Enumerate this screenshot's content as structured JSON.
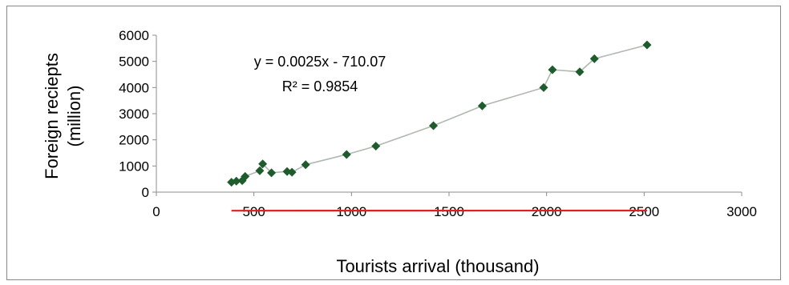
{
  "chart_data": {
    "type": "scatter",
    "title": "",
    "xlabel": "Tourists arrival (thousand)",
    "ylabel_lines": [
      "Foreign reciepts",
      "(million)"
    ],
    "xlim": [
      0,
      3000
    ],
    "ylim": [
      0,
      6000
    ],
    "xticks": [
      0,
      500,
      1000,
      1500,
      2000,
      2500,
      3000
    ],
    "yticks": [
      0,
      1000,
      2000,
      3000,
      4000,
      5000,
      6000
    ],
    "grid": false,
    "marker_color": "#1e5c2e",
    "connector_color": "#b0b8b0",
    "trendline": {
      "slope": 0.0025,
      "intercept": -710.07,
      "x_range": [
        385,
        2515
      ],
      "color": "#e0201b",
      "equation": "y = 0.0025x - 710.07",
      "r_squared": "R² = 0.9854"
    },
    "points": [
      {
        "x": 385,
        "y": 380
      },
      {
        "x": 410,
        "y": 420
      },
      {
        "x": 440,
        "y": 440
      },
      {
        "x": 455,
        "y": 600
      },
      {
        "x": 530,
        "y": 820
      },
      {
        "x": 545,
        "y": 1080
      },
      {
        "x": 590,
        "y": 740
      },
      {
        "x": 670,
        "y": 790
      },
      {
        "x": 695,
        "y": 760
      },
      {
        "x": 765,
        "y": 1050
      },
      {
        "x": 975,
        "y": 1440
      },
      {
        "x": 1125,
        "y": 1760
      },
      {
        "x": 1420,
        "y": 2540
      },
      {
        "x": 1670,
        "y": 3300
      },
      {
        "x": 1985,
        "y": 4000
      },
      {
        "x": 2030,
        "y": 4680
      },
      {
        "x": 2170,
        "y": 4600
      },
      {
        "x": 2245,
        "y": 5100
      },
      {
        "x": 2515,
        "y": 5630
      }
    ]
  }
}
